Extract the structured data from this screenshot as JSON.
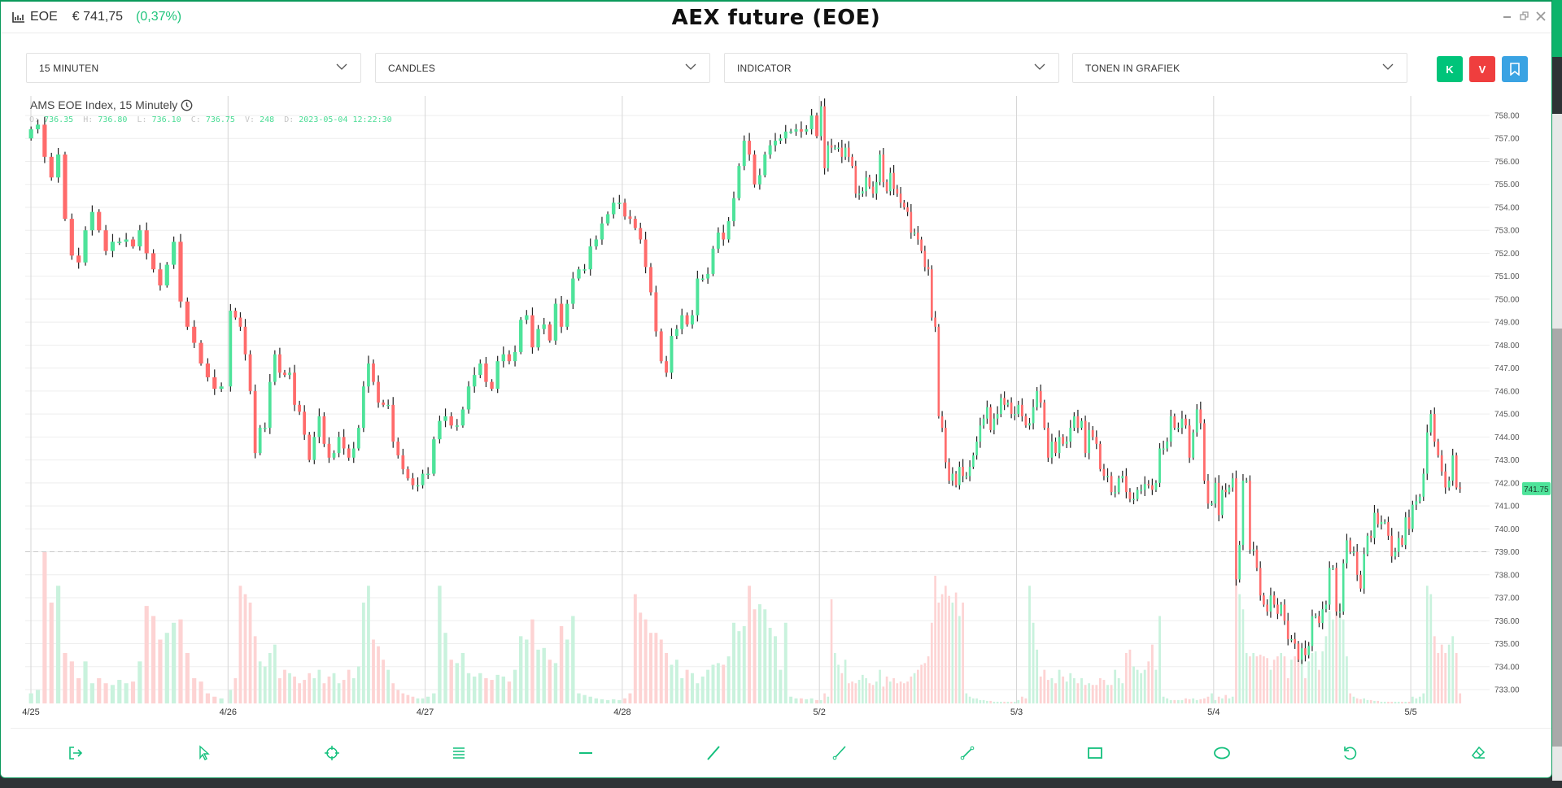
{
  "header": {
    "symbol": "EOE",
    "price": "€ 741,75",
    "change": "(0,37%)",
    "title": "AEX future (EOE)"
  },
  "controls": {
    "interval": "15 MINUTEN",
    "chart_type": "CANDLES",
    "indicator": "INDICATOR",
    "show_in_chart": "TONEN IN GRAFIEK",
    "buy_label": "K",
    "sell_label": "V"
  },
  "colors": {
    "accent": "#00c47a",
    "buy": "#00c47a",
    "sell": "#ef3e3e",
    "bookmark": "#3aa3e3",
    "up": "#4ee39a",
    "down": "#ff6b6b"
  },
  "legend": {
    "title": "AMS EOE Index, 15 Minutely",
    "o_label": "O:",
    "o": "736.35",
    "h_label": "H:",
    "h": "736.80",
    "l_label": "L:",
    "l": "736.10",
    "c_label": "C:",
    "c": "736.75",
    "v_label": "V:",
    "v": "248",
    "d_label": "D:",
    "d": "2023-05-04 12:22:30"
  },
  "toolbar": [
    "exit-icon",
    "cursor-icon",
    "crosshair-icon",
    "lines-icon",
    "horizontal-line-icon",
    "trend-line-icon",
    "ray-icon",
    "segment-icon",
    "rectangle-icon",
    "ellipse-icon",
    "undo-icon",
    "eraser-icon"
  ],
  "chart_data": {
    "type": "candlestick",
    "title": "AMS EOE Index, 15 Minutely",
    "ylim": [
      733,
      758
    ],
    "y_ticks": [
      "758.00",
      "757.00",
      "756.00",
      "755.00",
      "754.00",
      "753.00",
      "752.00",
      "751.00",
      "750.00",
      "749.00",
      "748.00",
      "747.00",
      "746.00",
      "745.00",
      "744.00",
      "743.00",
      "742.00",
      "741.00",
      "740.00",
      "739.00",
      "738.00",
      "737.00",
      "736.00",
      "735.00",
      "734.00",
      "733.00"
    ],
    "last_price": "741.75",
    "reference_line": 739.0,
    "open_first": 757.0,
    "days": [
      {
        "label": "4/25",
        "close": [
          757.4,
          757.6,
          756.2,
          755.3,
          756.3,
          753.5,
          751.9,
          751.6,
          753.0,
          753.8,
          753.0,
          752.1,
          752.5,
          752.5,
          752.6,
          752.3,
          753.0,
          752.0,
          751.3,
          750.6,
          751.5,
          752.5,
          749.9,
          748.8,
          748.1,
          747.2,
          746.6,
          746.1,
          746.2
        ],
        "volume": [
          60,
          80,
          900,
          600,
          700,
          300,
          250,
          150,
          250,
          120,
          150,
          120,
          110,
          140,
          120,
          130,
          250,
          580,
          520,
          380,
          420,
          480,
          500,
          300,
          150,
          130,
          60,
          40,
          30
        ]
      },
      {
        "label": "4/26",
        "close": [
          749.5,
          749.2,
          748.8,
          747.6,
          746.0,
          743.3,
          744.4,
          744.4,
          746.4,
          747.6,
          746.8,
          746.7,
          746.8,
          745.4,
          745.1,
          744.1,
          743.0,
          744.0,
          744.9,
          743.7,
          743.1,
          743.3,
          744.0,
          743.5,
          743.1,
          743.5,
          744.4,
          746.2,
          747.2,
          746.4,
          745.5,
          745.4,
          745.4,
          743.8,
          743.2,
          742.6,
          742.2,
          741.9,
          741.9,
          742.4
        ],
        "volume": [
          80,
          150,
          700,
          650,
          600,
          400,
          250,
          220,
          300,
          350,
          150,
          200,
          180,
          160,
          120,
          140,
          180,
          150,
          200,
          120,
          160,
          180,
          120,
          140,
          200,
          150,
          220,
          600,
          700,
          380,
          340,
          260,
          200,
          120,
          80,
          60,
          50,
          40,
          30,
          30
        ]
      },
      {
        "label": "4/27",
        "close": [
          742.4,
          743.9,
          744.7,
          744.9,
          744.5,
          744.5,
          745.2,
          746.2,
          746.7,
          747.2,
          746.4,
          746.1,
          747.3,
          747.6,
          747.3,
          747.7,
          749.1,
          749.3,
          747.9,
          748.7,
          748.9,
          748.2,
          749.8,
          748.8,
          749.8,
          750.9,
          751.3,
          751.3,
          752.3,
          752.6,
          753.3,
          753.7,
          754.2,
          754.2
        ],
        "volume": [
          40,
          60,
          700,
          420,
          260,
          240,
          300,
          180,
          160,
          180,
          150,
          140,
          170,
          160,
          130,
          200,
          400,
          380,
          500,
          320,
          330,
          260,
          240,
          460,
          380,
          520,
          60,
          50,
          40,
          30,
          25,
          20,
          25,
          20
        ]
      },
      {
        "label": "4/28",
        "close": [
          753.6,
          753.5,
          753.1,
          752.6,
          751.4,
          750.3,
          748.6,
          747.3,
          746.8,
          748.4,
          748.7,
          749.3,
          748.9,
          749.3,
          750.9,
          750.9,
          751.1,
          752.2,
          752.9,
          752.6,
          753.4,
          754.4,
          755.8,
          756.9,
          756.3,
          755.0,
          755.4,
          756.3,
          756.7,
          756.9,
          757.0,
          757.3,
          757.3,
          757.4,
          757.3,
          757.4,
          758.0,
          757.1
        ],
        "volume": [
          30,
          60,
          650,
          540,
          500,
          420,
          420,
          380,
          300,
          230,
          260,
          150,
          200,
          180,
          120,
          160,
          200,
          230,
          240,
          230,
          280,
          480,
          430,
          460,
          700,
          560,
          590,
          560,
          450,
          400,
          200,
          480,
          40,
          30,
          30,
          25,
          30,
          20
        ]
      },
      {
        "label": "5/2",
        "close": [
          758.4,
          755.7,
          756.7,
          756.6,
          756.6,
          756.6,
          756.2,
          756.6,
          756.2,
          755.8,
          754.6,
          754.6,
          754.7,
          755.3,
          754.9,
          754.6,
          755.1,
          756.3,
          755.1,
          754.7,
          755.5,
          754.8,
          754.6,
          754.2,
          754.0,
          753.8,
          752.9,
          752.9,
          752.6,
          752.1,
          751.4,
          751.3,
          749.2,
          748.8,
          744.9,
          744.4,
          742.9,
          742.1,
          742.4,
          741.9,
          742.7,
          742.3,
          742.3,
          742.7,
          743.2,
          743.8,
          744.5,
          744.8,
          745.3,
          744.3,
          744.8,
          745.0,
          745.7,
          745.4,
          745.5,
          745.0,
          745.0
        ],
        "volume": [
          20,
          60,
          40,
          620,
          300,
          230,
          180,
          260,
          120,
          130,
          120,
          140,
          170,
          150,
          120,
          110,
          130,
          200,
          100,
          160,
          130,
          150,
          120,
          130,
          120,
          130,
          160,
          180,
          200,
          230,
          240,
          280,
          480,
          760,
          600,
          650,
          700,
          640,
          600,
          660,
          520,
          600,
          60,
          40,
          30,
          30,
          20,
          20,
          15,
          15,
          10,
          10,
          10,
          10,
          10,
          10,
          10
        ]
      },
      {
        "label": "5/3",
        "close": [
          745.4,
          744.9,
          744.5,
          744.6,
          745.3,
          746.0,
          745.5,
          744.4,
          743.1,
          743.8,
          743.3,
          744.0,
          743.7,
          743.8,
          744.4,
          744.9,
          744.4,
          744.7,
          743.3,
          744.3,
          744.0,
          743.7,
          742.6,
          742.3,
          742.3,
          741.6,
          741.6,
          742.2,
          742.3,
          741.6,
          741.3,
          741.3,
          741.7,
          741.7,
          741.95,
          741.9,
          741.7,
          742.0,
          743.5,
          743.5,
          743.8,
          744.9,
          744.4,
          744.4,
          744.8,
          744.5,
          743.1,
          744.2,
          745.2,
          744.6,
          742.1,
          741.1,
          741.1
        ],
        "volume": [
          20,
          40,
          30,
          700,
          480,
          320,
          160,
          200,
          140,
          150,
          120,
          200,
          160,
          130,
          180,
          150,
          120,
          150,
          110,
          120,
          110,
          110,
          150,
          140,
          110,
          110,
          200,
          150,
          120,
          300,
          320,
          220,
          200,
          180,
          200,
          250,
          350,
          200,
          520,
          40,
          30,
          20,
          20,
          20,
          20,
          30,
          25,
          30,
          20,
          25,
          30,
          40,
          60
        ]
      },
      {
        "label": "5/4",
        "close": [
          742.0,
          740.6,
          741.7,
          741.6,
          741.8,
          742.2,
          737.8,
          739.3,
          742.1,
          742.1,
          739.1,
          739.1,
          738.3,
          737.1,
          736.7,
          736.4,
          737.1,
          736.7,
          736.3,
          736.7,
          736.0,
          735.2,
          735.2,
          735.0,
          734.3,
          734.8,
          734.5,
          734.9,
          736.2,
          736.2,
          735.9,
          736.5,
          736.7,
          738.3,
          738.3,
          736.4,
          736.4,
          738.5,
          739.5,
          739.0,
          739.0,
          738.0,
          737.4,
          738.9,
          739.7,
          739.6,
          740.7,
          740.2,
          740.3,
          740.3,
          739.7,
          738.8,
          739.0,
          739.6,
          739.3,
          740.5,
          740.0
        ],
        "volume": [
          20,
          40,
          30,
          50,
          30,
          40,
          800,
          650,
          560,
          300,
          280,
          300,
          280,
          290,
          280,
          270,
          200,
          260,
          280,
          300,
          280,
          150,
          260,
          280,
          260,
          260,
          150,
          250,
          300,
          310,
          200,
          310,
          400,
          550,
          500,
          650,
          600,
          500,
          280,
          60,
          40,
          30,
          25,
          30,
          20,
          20,
          15,
          15,
          10,
          10,
          10,
          10,
          10,
          10,
          10,
          10,
          10
        ]
      },
      {
        "label": "5/5",
        "close": [
          741.05,
          741.2,
          741.4,
          742.4,
          744.2,
          745.0,
          743.8,
          743.2,
          742.5,
          741.8,
          742.1,
          743.2,
          741.8,
          741.75
        ],
        "volume": [
          40,
          30,
          40,
          60,
          700,
          650,
          400,
          300,
          350,
          300,
          350,
          400,
          300,
          60
        ]
      }
    ]
  }
}
